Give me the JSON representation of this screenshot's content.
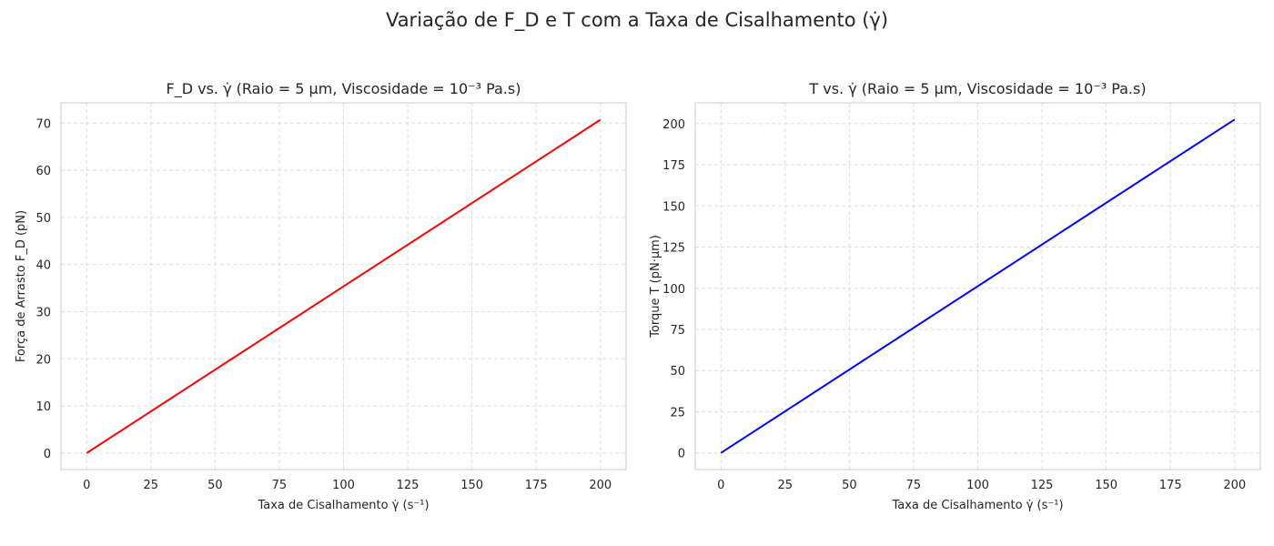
{
  "suptitle": "Variação de F_D e T com a Taxa de Cisalhamento (γ̇)",
  "chart_data": [
    {
      "type": "line",
      "title": "F_D vs. γ̇ (Raio = 5 μm, Viscosidade = 10⁻³ Pa.s)",
      "xlabel": "Taxa de Cisalhamento γ̇ (s⁻¹)",
      "ylabel": "Força de Arrasto F_D (pN)",
      "xlim": [
        -10,
        210
      ],
      "ylim": [
        -3.5,
        74.3
      ],
      "xticks": [
        0,
        25,
        50,
        75,
        100,
        125,
        150,
        175,
        200
      ],
      "yticks": [
        0,
        10,
        20,
        30,
        40,
        50,
        60,
        70
      ],
      "grid": true,
      "series": [
        {
          "color": "#ff0000",
          "x": [
            0,
            200
          ],
          "y": [
            0,
            70.7
          ]
        }
      ]
    },
    {
      "type": "line",
      "title": "T vs. γ̇ (Raio = 5 μm, Viscosidade = 10⁻³ Pa.s)",
      "xlabel": "Taxa de Cisalhamento γ̇ (s⁻¹)",
      "ylabel": "Torque T (pN·μm)",
      "xlim": [
        -10,
        210
      ],
      "ylim": [
        -10.1,
        212.6
      ],
      "xticks": [
        0,
        25,
        50,
        75,
        100,
        125,
        150,
        175,
        200
      ],
      "yticks": [
        0,
        25,
        50,
        75,
        100,
        125,
        150,
        175,
        200
      ],
      "grid": true,
      "series": [
        {
          "color": "#0000ff",
          "x": [
            0,
            200
          ],
          "y": [
            0,
            202.5
          ]
        }
      ]
    }
  ]
}
